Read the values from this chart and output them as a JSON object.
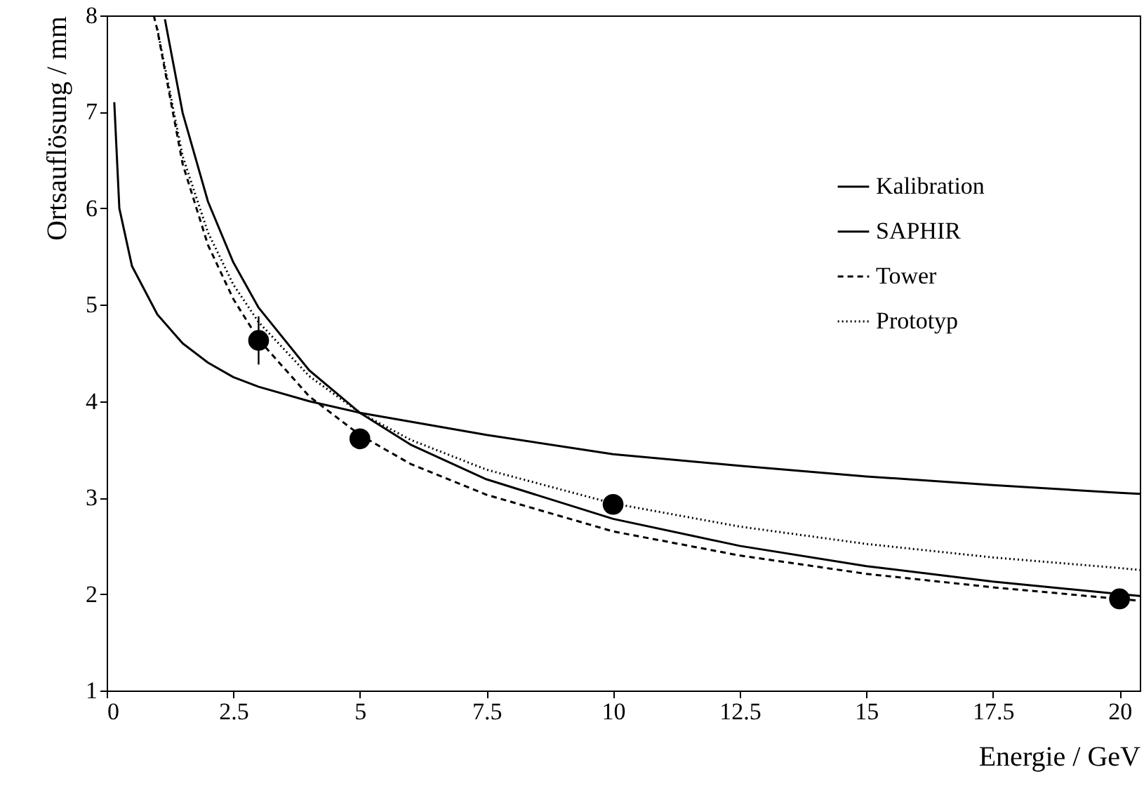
{
  "chart_data": {
    "type": "line",
    "xlabel": "Energie / GeV",
    "ylabel": "Ortsauflösung / mm",
    "xlim": [
      0,
      20.4
    ],
    "ylim": [
      1,
      8
    ],
    "xticks": [
      0,
      2.5,
      5,
      7.5,
      10,
      12.5,
      15,
      17.5,
      20
    ],
    "yticks": [
      1,
      2,
      3,
      4,
      5,
      6,
      7,
      8
    ],
    "grid": false,
    "legend": "top right",
    "series": [
      {
        "name": "Kalibration",
        "color": "#000000",
        "line_style": "solid",
        "x": [
          1.15,
          1.5,
          2,
          2.5,
          3,
          4,
          5,
          6,
          7.5,
          10,
          12.5,
          15,
          17.5,
          20,
          20.4
        ],
        "values": [
          7.96,
          6.99,
          6.07,
          5.44,
          4.97,
          4.32,
          3.88,
          3.55,
          3.19,
          2.78,
          2.5,
          2.29,
          2.13,
          2.0,
          1.98
        ]
      },
      {
        "name": "SAPHIR",
        "color": "#000000",
        "line_style": "solid",
        "x": [
          0.15,
          0.25,
          0.5,
          1,
          1.5,
          2,
          2.5,
          3,
          4,
          5,
          7.5,
          10,
          12.5,
          15,
          17.5,
          20,
          20.4
        ],
        "values": [
          7.1,
          6.0,
          5.4,
          4.9,
          4.6,
          4.4,
          4.25,
          4.15,
          4.0,
          3.88,
          3.65,
          3.45,
          3.33,
          3.22,
          3.13,
          3.05,
          3.04
        ]
      },
      {
        "name": "Tower",
        "color": "#000000",
        "line_style": "dashed",
        "x": [
          0.93,
          1,
          1.5,
          2,
          2.5,
          3,
          4,
          5,
          6,
          7.5,
          10,
          12.5,
          15,
          17.5,
          20,
          20.4
        ],
        "values": [
          8.0,
          7.85,
          6.46,
          5.62,
          5.06,
          4.64,
          4.05,
          3.65,
          3.35,
          3.03,
          2.65,
          2.4,
          2.21,
          2.07,
          1.95,
          1.93
        ]
      },
      {
        "name": "Prototyp",
        "color": "#000000",
        "line_style": "dotted",
        "x": [
          1.0,
          1.5,
          2,
          2.5,
          3,
          4,
          5,
          6,
          7.5,
          10,
          12.5,
          15,
          17.5,
          20,
          20.4
        ],
        "values": [
          7.86,
          6.54,
          5.75,
          5.21,
          4.82,
          4.26,
          3.88,
          3.6,
          3.29,
          2.94,
          2.7,
          2.52,
          2.38,
          2.27,
          2.25
        ]
      },
      {
        "type": "scatter",
        "color": "#000000",
        "marker": "circle",
        "x": [
          3,
          5,
          10,
          20
        ],
        "values": [
          4.63,
          3.61,
          2.93,
          1.95
        ],
        "errors": [
          0.25,
          null,
          null,
          null
        ]
      }
    ]
  }
}
